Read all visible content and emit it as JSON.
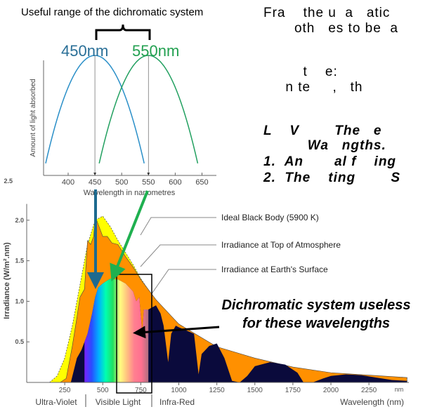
{
  "top_text": {
    "title": "Useful range of the dichromatic system",
    "label_450": "450nm",
    "label_550": "550nm",
    "color_450": "#2a6f97",
    "color_550": "#22a050"
  },
  "obscured_text_fragments": [
    "Fra    the u  a   atic",
    "       oth   es to be  a",
    "         t    e:",
    "     n te     ,   th",
    "L    V        The   e",
    "          Wa   ngths.",
    "1.  An       al f    ing",
    "2.  The    ting        S"
  ],
  "chart_data": [
    {
      "type": "line",
      "xlabel": "Wavelength in nanometres",
      "ylabel": "Amount of light absorbed",
      "x_ticks": [
        "400",
        "450",
        "500",
        "550",
        "600",
        "650"
      ],
      "xlim": [
        355,
        685
      ],
      "series": [
        {
          "peak": 450,
          "color": "#2a8fc8",
          "x": [
            360,
            400,
            450,
            500,
            550
          ],
          "y": [
            0.05,
            0.72,
            1.0,
            0.72,
            0.05
          ]
        },
        {
          "peak": 550,
          "color": "#22a060",
          "x": [
            450,
            500,
            550,
            600,
            650
          ],
          "y": [
            0.05,
            0.72,
            1.0,
            0.72,
            0.05
          ]
        }
      ]
    },
    {
      "type": "area",
      "xlabel": "Wavelength (nm)",
      "ylabel": "Irradiance (W/m².nm)",
      "unit_label": "nm",
      "xlim": [
        0,
        2500
      ],
      "ylim": [
        0,
        2.5
      ],
      "x_ticks": [
        "250",
        "500",
        "750",
        "1000",
        "1250",
        "1500",
        "1750",
        "2000",
        "2250"
      ],
      "y_ticks": [
        "0.5",
        "1.0",
        "1.5",
        "2.0",
        "2.5"
      ],
      "regions": [
        "Ultra-Violet",
        "Visible Light",
        "Infra-Red"
      ],
      "annotation": [
        "Dichromatic system useless",
        "for these wavelengths"
      ],
      "series": [
        {
          "name": "Ideal Black Body (5900 K)",
          "color": "#ffff00",
          "x": [
            150,
            200,
            250,
            300,
            350,
            400,
            450,
            500,
            550,
            600,
            700,
            750,
            850,
            1000,
            1250,
            1500,
            1750,
            2000,
            2250,
            2500
          ],
          "y": [
            0,
            0.08,
            0.3,
            0.7,
            1.2,
            1.7,
            2.0,
            2.05,
            1.92,
            1.75,
            1.45,
            1.28,
            1.0,
            0.72,
            0.42,
            0.27,
            0.17,
            0.11,
            0.08,
            0.06
          ]
        },
        {
          "name": "Irradiance at Top of Atmosphere",
          "color": "#ff9000",
          "x": [
            220,
            260,
            300,
            330,
            350,
            380,
            400,
            420,
            440,
            450,
            470,
            500,
            530,
            560,
            600,
            650,
            700,
            750,
            850,
            1000,
            1250,
            1500,
            1750,
            2000,
            2250,
            2500
          ],
          "y": [
            0,
            0.05,
            0.45,
            0.8,
            1.05,
            1.15,
            1.75,
            1.7,
            1.8,
            2.05,
            1.95,
            1.8,
            1.8,
            1.72,
            1.7,
            1.55,
            1.42,
            1.27,
            1.02,
            0.72,
            0.44,
            0.3,
            0.19,
            0.12,
            0.09,
            0.06
          ]
        },
        {
          "name": "Irradiance at Earth's Surface",
          "color": "#0a0a3c",
          "x": [
            290,
            330,
            360,
            400,
            430,
            450,
            470,
            500,
            550,
            600,
            650,
            700,
            720,
            740,
            760,
            770,
            800,
            850,
            880,
            900,
            930,
            950,
            980,
            1000,
            1100,
            1130,
            1150,
            1200,
            1250,
            1300,
            1350,
            1400,
            1450,
            1500,
            1600,
            1700,
            1780,
            1820,
            1880,
            1950,
            2000,
            2100,
            2200,
            2300,
            2400,
            2500
          ],
          "y": [
            0,
            0.3,
            0.4,
            0.6,
            0.85,
            1.05,
            1.17,
            1.22,
            1.28,
            1.27,
            1.22,
            1.12,
            1.0,
            1.05,
            0.6,
            0.9,
            0.9,
            0.95,
            0.85,
            0.7,
            0.25,
            0.6,
            0.7,
            0.68,
            0.6,
            0.1,
            0.35,
            0.45,
            0.48,
            0.3,
            0.02,
            0.0,
            0.08,
            0.2,
            0.25,
            0.22,
            0.12,
            0.0,
            0.0,
            0.05,
            0.08,
            0.1,
            0.09,
            0.06,
            0.03,
            0.02
          ]
        }
      ],
      "visible_gradient": [
        "#7a22ff",
        "#2a4cff",
        "#00b0ff",
        "#00ffb0",
        "#20e060",
        "#ffff80",
        "#ffc080",
        "#ff8090",
        "#ff7090",
        "#b07080"
      ]
    }
  ]
}
